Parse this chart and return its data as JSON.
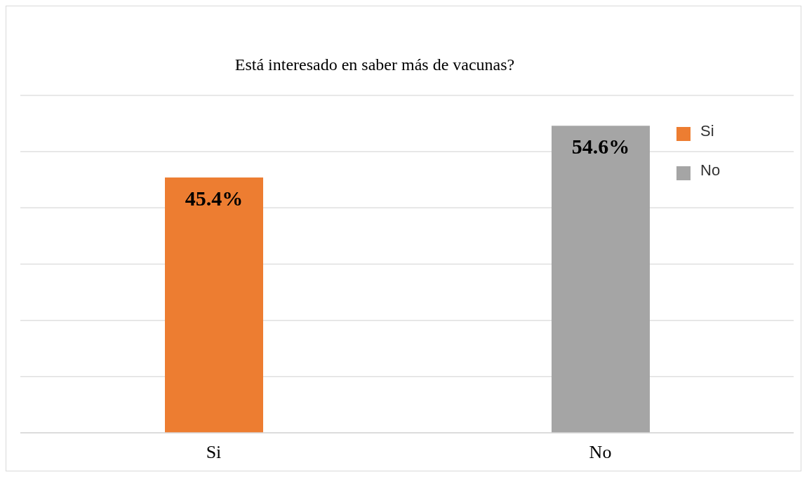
{
  "chart_data": {
    "type": "bar",
    "title": "Está interesado en saber más de vacunas?",
    "categories": [
      "Si",
      "No"
    ],
    "series": [
      {
        "name": "Si",
        "color": "#ed7d31",
        "values": [
          45.4,
          null
        ],
        "value_labels": [
          "45.4%",
          null
        ]
      },
      {
        "name": "No",
        "color": "#a5a5a5",
        "values": [
          null,
          54.6
        ],
        "value_labels": [
          null,
          "54.6%"
        ]
      }
    ],
    "stacked": true,
    "ylim": [
      0,
      60
    ],
    "tick_labels": "x",
    "grid": "y",
    "legend": "top right"
  }
}
